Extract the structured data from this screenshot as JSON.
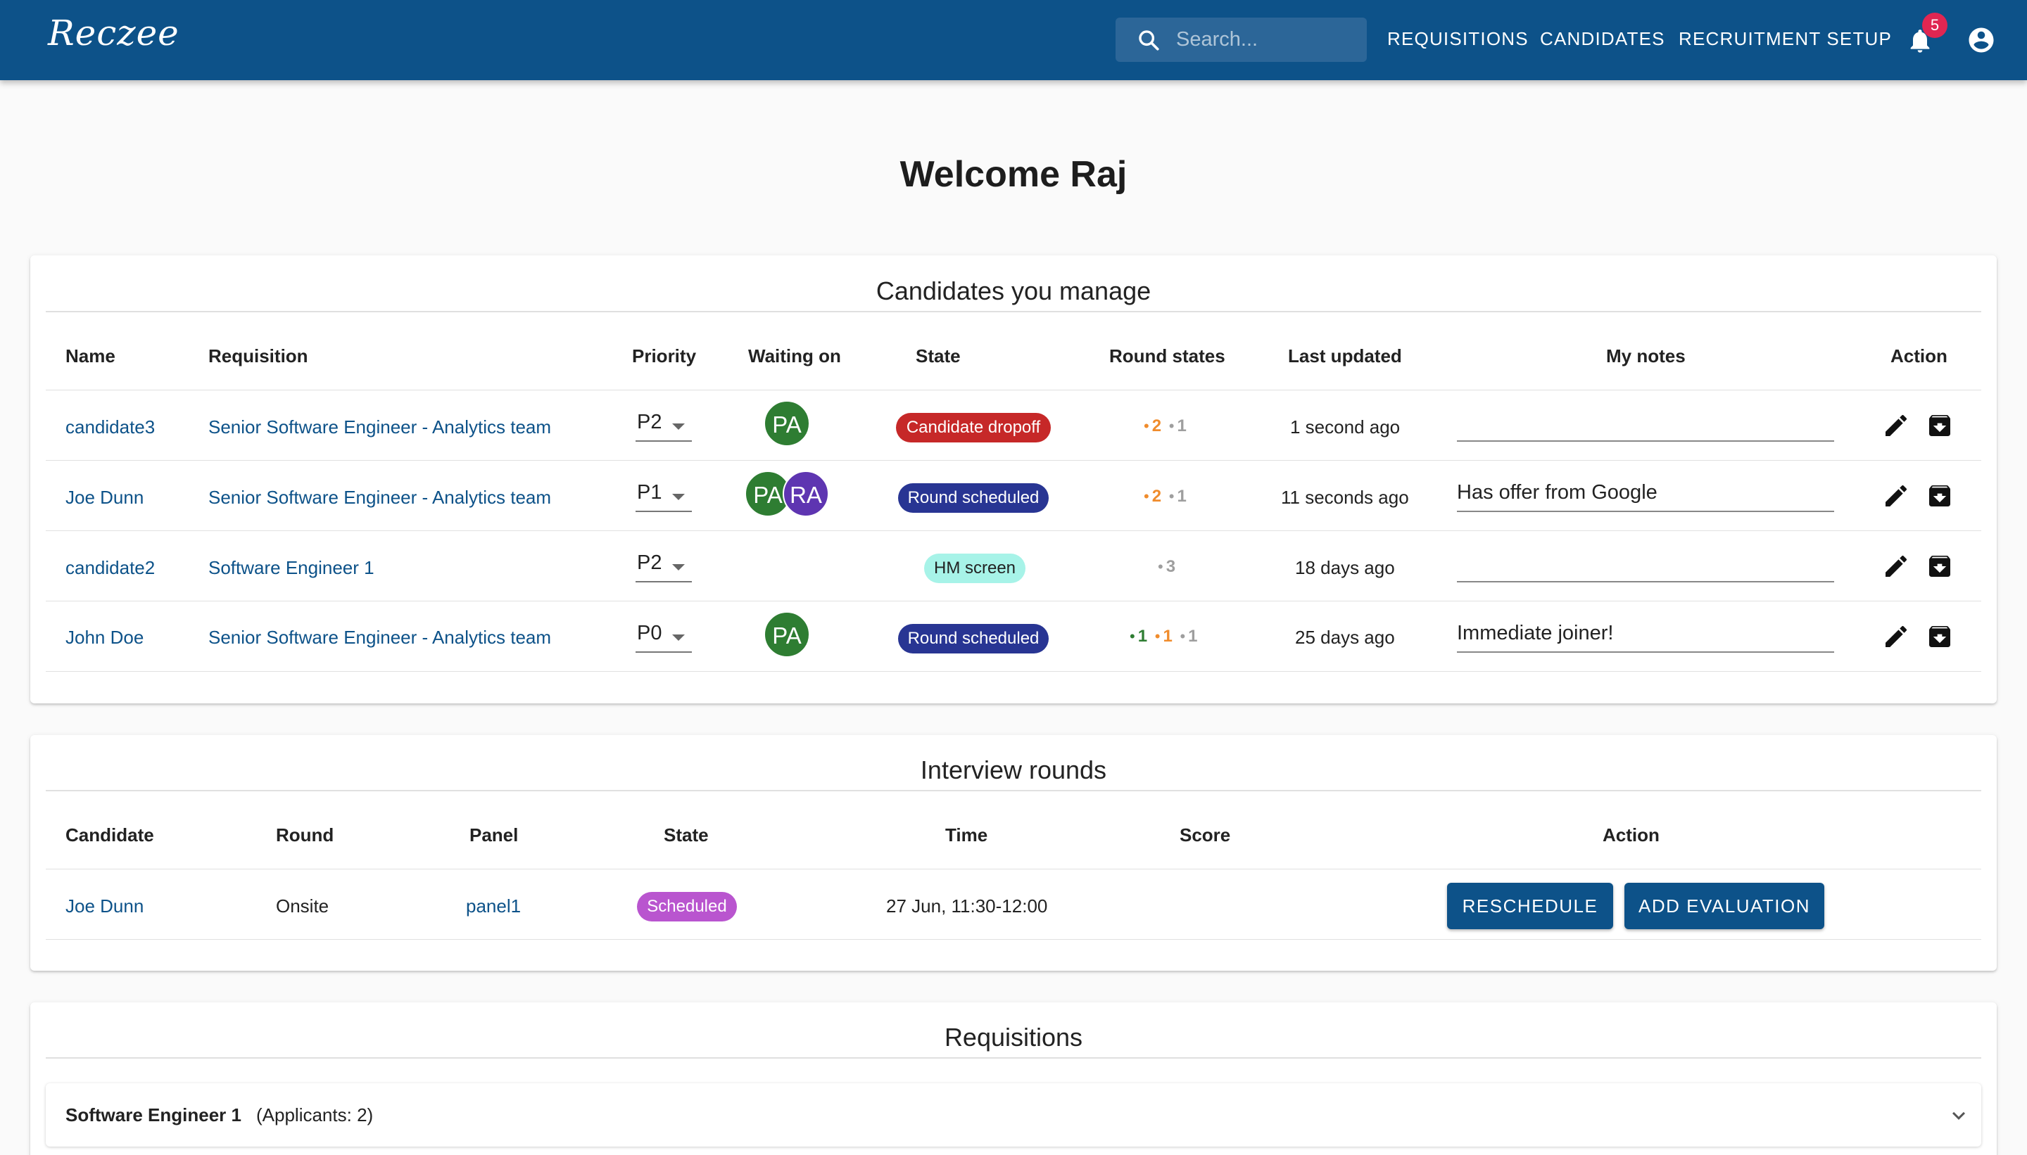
{
  "app": {
    "logo": "Reczee",
    "search_placeholder": "Search...",
    "nav": [
      "REQUISITIONS",
      "CANDIDATES",
      "RECRUITMENT SETUP"
    ],
    "notification_count": "5"
  },
  "welcome": "Welcome Raj",
  "candidates": {
    "title": "Candidates you manage",
    "headers": [
      "Name",
      "Requisition",
      "Priority",
      "Waiting on",
      "State",
      "Round states",
      "Last updated",
      "My notes",
      "Action"
    ],
    "rows": [
      {
        "name": "candidate3",
        "requisition": "Senior Software Engineer - Analytics team",
        "priority": "P2",
        "waiting_on": [
          "PA"
        ],
        "state": "Candidate dropoff",
        "round_states": [
          "2",
          "1"
        ],
        "last_updated": "1 second ago",
        "notes": ""
      },
      {
        "name": "Joe Dunn",
        "requisition": "Senior Software Engineer - Analytics team",
        "priority": "P1",
        "waiting_on": [
          "PA",
          "RA"
        ],
        "state": "Round scheduled",
        "round_states": [
          "2",
          "1"
        ],
        "last_updated": "11 seconds ago",
        "notes": "Has offer from Google"
      },
      {
        "name": "candidate2",
        "requisition": "Software Engineer 1",
        "priority": "P2",
        "waiting_on": [],
        "state": "HM screen",
        "round_states": [
          "3"
        ],
        "last_updated": "18 days ago",
        "notes": ""
      },
      {
        "name": "John Doe",
        "requisition": "Senior Software Engineer - Analytics team",
        "priority": "P0",
        "waiting_on": [
          "PA"
        ],
        "state": "Round scheduled",
        "round_states": [
          "1",
          "1",
          "1"
        ],
        "last_updated": "25 days ago",
        "notes": "Immediate joiner!"
      }
    ]
  },
  "interviews": {
    "title": "Interview rounds",
    "headers": [
      "Candidate",
      "Round",
      "Panel",
      "State",
      "Time",
      "Score",
      "Action"
    ],
    "rows": [
      {
        "candidate": "Joe Dunn",
        "round": "Onsite",
        "panel": "panel1",
        "state": "Scheduled",
        "time": "27 Jun, 11:30-12:00",
        "score": "",
        "actions": [
          "RESCHEDULE",
          "ADD EVALUATION"
        ]
      }
    ]
  },
  "requisitions": {
    "title": "Requisitions",
    "items": [
      {
        "name": "Software Engineer 1",
        "applicants": "(Applicants: 2)"
      }
    ]
  },
  "colors": {
    "primary": "#0d5289",
    "chip_dropoff": "#c62828",
    "chip_scheduled": "#283593",
    "chip_hm_screen": "#a7f3e8",
    "chip_interview_scheduled": "#b955cf",
    "avatar_pa": "#2e7d32",
    "avatar_ra": "#5e35b1",
    "round_orange": "#f08c2c",
    "round_green": "#2e7d32",
    "round_grey": "#9e9e9e"
  }
}
